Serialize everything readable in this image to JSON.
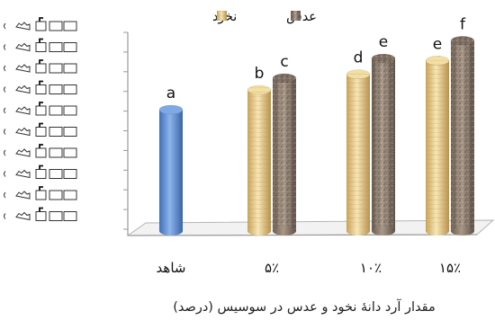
{
  "chart_data": {
    "type": "bar",
    "xlabel": "مقدار آرد دانهٔ نخود و عدس در سوسیس (درصد)",
    "categories": [
      "شاهد",
      "۵٪",
      "۱۰٪",
      "۱۵٪"
    ],
    "ylim": [
      0,
      10
    ],
    "grid": false,
    "legend_position": "top",
    "y_tick_labels_garbled": true,
    "series": [
      {
        "name": "",
        "color": "#5b8fd6",
        "pattern": "solid-blue",
        "values": [
          6.3,
          null,
          null,
          null
        ],
        "labels": [
          "a",
          "",
          "",
          ""
        ]
      },
      {
        "name": "نخود",
        "color": "#e8cf8c",
        "pattern": "wood",
        "values": [
          null,
          7.3,
          8.1,
          8.8
        ],
        "labels": [
          "",
          "b",
          "d",
          "e"
        ]
      },
      {
        "name": "عدس",
        "color": "#8a7a6c",
        "pattern": "granite",
        "values": [
          null,
          7.9,
          8.9,
          9.8
        ],
        "labels": [
          "",
          "c",
          "e",
          "f"
        ]
      }
    ]
  }
}
